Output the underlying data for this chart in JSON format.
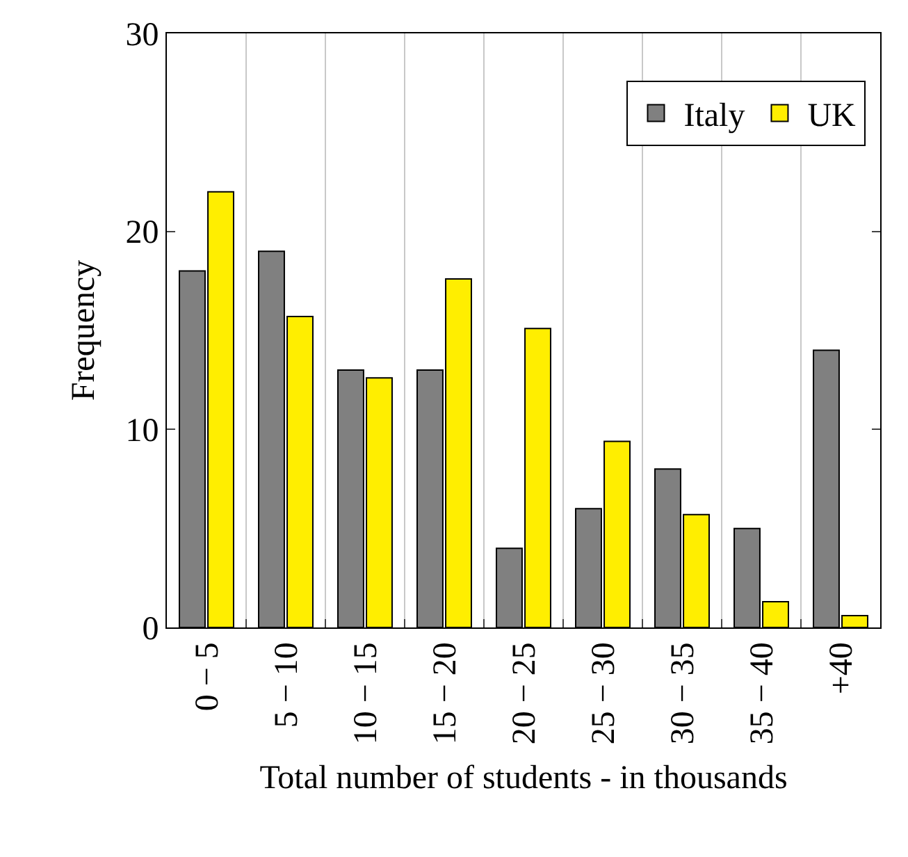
{
  "chart_data": {
    "type": "bar",
    "xlabel": "Total number of students - in thousands",
    "ylabel": "Frequency",
    "categories": [
      "0 − 5",
      "5 − 10",
      "10 − 15",
      "15 − 20",
      "20 − 25",
      "25 − 30",
      "30 − 35",
      "35 − 40",
      "+40"
    ],
    "series": [
      {
        "name": "Italy",
        "color": "#808080",
        "values": [
          18,
          19,
          13,
          13,
          4,
          6,
          8,
          5,
          14
        ]
      },
      {
        "name": "UK",
        "color": "#ffee00",
        "values": [
          22,
          15.7,
          12.6,
          17.6,
          15.1,
          9.4,
          5.7,
          1.3,
          0.6
        ]
      }
    ],
    "ylim": [
      0,
      30
    ],
    "yticks": [
      0,
      10,
      20,
      30
    ],
    "grid": "x",
    "legend": "top right"
  }
}
